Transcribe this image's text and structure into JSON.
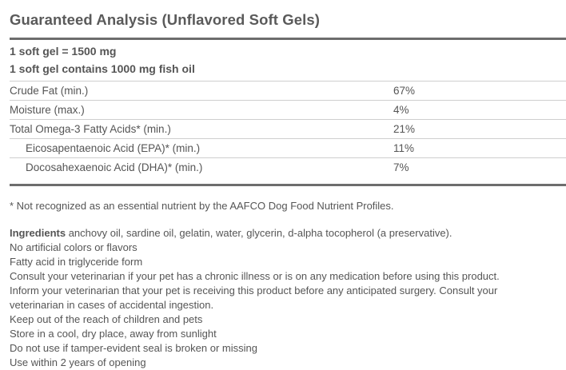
{
  "title": "Guaranteed Analysis (Unflavored Soft Gels)",
  "serving": [
    "1 soft gel = 1500 mg",
    "1 soft gel contains 1000 mg fish oil"
  ],
  "analysis": [
    {
      "name": "Crude Fat (min.)",
      "value": "67%"
    },
    {
      "name": "Moisture (max.)",
      "value": "4%"
    },
    {
      "name": "Total Omega-3 Fatty Acids* (min.)",
      "value": "21%"
    },
    {
      "name": "Eicosapentaenoic Acid (EPA)* (min.)",
      "value": "11%"
    },
    {
      "name": "Docosahexaenoic Acid (DHA)* (min.)",
      "value": "7%"
    }
  ],
  "footnote": "* Not recognized as an essential nutrient by the AAFCO Dog Food Nutrient Profiles.",
  "ingredients": {
    "label": "Ingredients",
    "text": " anchovy oil, sardine oil, gelatin, water, glycerin, d-alpha tocopherol (a preservative)."
  },
  "notes": [
    "No artificial colors or flavors",
    "Fatty acid in triglyceride form",
    "Consult your veterinarian if your pet has a chronic illness or is on any medication before using this product.",
    "Inform your veterinarian that your pet is receiving this product before any anticipated surgery. Consult your",
    "veterinarian in cases of accidental ingestion.",
    "Keep out of the reach of children and pets",
    "Store in a cool, dry place, away from sunlight",
    "Do not use if tamper-evident seal is broken or missing",
    "Use within 2 years of opening"
  ]
}
